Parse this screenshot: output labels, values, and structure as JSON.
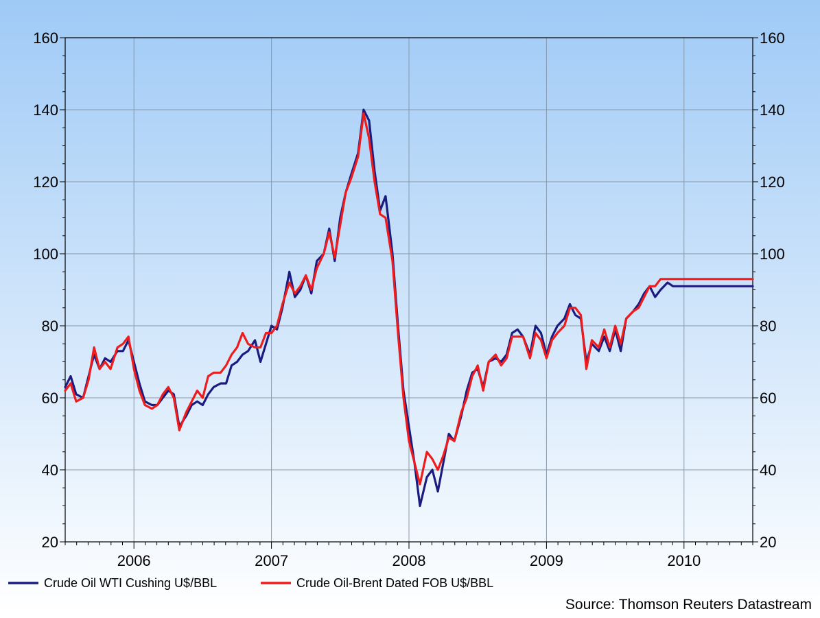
{
  "chart_data": {
    "type": "line",
    "title": "",
    "xlabel": "",
    "ylabel": "",
    "ylim": [
      20,
      160
    ],
    "y_ticks": [
      "20",
      "40",
      "60",
      "80",
      "100",
      "120",
      "140",
      "160"
    ],
    "x_range": [
      2005.5,
      2010.5
    ],
    "x_tick_labels": [
      "2006",
      "2007",
      "2008",
      "2009",
      "2010"
    ],
    "grid": true,
    "legend_position": "bottom-left",
    "source": "Source: Thomson Reuters Datastream",
    "background_gradient": [
      "#9fcaf6",
      "#ffffff"
    ],
    "series": [
      {
        "name": "Crude Oil WTI Cushing U$/BBL",
        "color": "#1c1c80",
        "x": [
          2005.5,
          2005.54,
          2005.58,
          2005.63,
          2005.67,
          2005.71,
          2005.75,
          2005.79,
          2005.83,
          2005.88,
          2005.92,
          2005.96,
          2006.0,
          2006.04,
          2006.08,
          2006.13,
          2006.17,
          2006.21,
          2006.25,
          2006.29,
          2006.33,
          2006.38,
          2006.42,
          2006.46,
          2006.5,
          2006.54,
          2006.58,
          2006.63,
          2006.67,
          2006.71,
          2006.75,
          2006.79,
          2006.83,
          2006.88,
          2006.92,
          2006.96,
          2007.0,
          2007.04,
          2007.08,
          2007.13,
          2007.17,
          2007.21,
          2007.25,
          2007.29,
          2007.33,
          2007.38,
          2007.42,
          2007.46,
          2007.5,
          2007.54,
          2007.58,
          2007.63,
          2007.67,
          2007.71,
          2007.75,
          2007.79,
          2007.83,
          2007.88,
          2007.92,
          2007.96,
          2008.0,
          2008.04,
          2008.08,
          2008.13,
          2008.17,
          2008.21,
          2008.25,
          2008.29,
          2008.33,
          2008.38,
          2008.42,
          2008.46,
          2008.5,
          2008.54,
          2008.58,
          2008.63,
          2008.67,
          2008.71,
          2008.75,
          2008.79,
          2008.83,
          2008.88,
          2008.92,
          2008.96,
          2009.0,
          2009.04,
          2009.08,
          2009.13,
          2009.17,
          2009.21,
          2009.25,
          2009.29,
          2009.33,
          2009.38,
          2009.42,
          2009.46,
          2009.5,
          2009.54,
          2009.58,
          2009.63,
          2009.67,
          2009.71,
          2009.75,
          2009.79,
          2009.83,
          2009.88,
          2009.92,
          2009.96,
          2010.0,
          2010.04,
          2010.08,
          2010.13,
          2010.17,
          2010.21,
          2010.25,
          2010.29,
          2010.33,
          2010.38,
          2010.42,
          2010.46,
          2010.5
        ],
        "values": [
          63,
          66,
          61,
          60,
          66,
          72,
          68,
          71,
          70,
          73,
          73,
          76,
          70,
          64,
          59,
          58,
          58,
          60,
          62,
          61,
          52,
          55,
          58,
          59,
          58,
          61,
          63,
          64,
          64,
          69,
          70,
          72,
          73,
          76,
          70,
          75,
          80,
          79,
          85,
          95,
          88,
          90,
          94,
          89,
          98,
          100,
          107,
          98,
          110,
          117,
          122,
          128,
          140,
          137,
          123,
          112,
          116,
          100,
          80,
          62,
          52,
          42,
          30,
          38,
          40,
          34,
          42,
          50,
          48,
          55,
          62,
          67,
          68,
          63,
          70,
          71,
          70,
          72,
          78,
          79,
          77,
          72,
          80,
          78,
          72,
          77,
          80,
          82,
          86,
          83,
          82,
          70,
          75,
          73,
          77,
          73,
          79,
          73,
          82,
          84,
          86,
          89,
          91,
          88,
          90,
          92,
          91,
          91,
          91,
          91,
          91,
          91,
          91,
          91,
          91,
          91,
          91,
          91,
          91,
          91,
          91
        ],
        "path_hint": "dense-weekly"
      },
      {
        "name": "Crude Oil-Brent Dated FOB U$/BBL",
        "color": "#ee1c1c",
        "x": [
          2005.5,
          2005.54,
          2005.58,
          2005.63,
          2005.67,
          2005.71,
          2005.75,
          2005.79,
          2005.83,
          2005.88,
          2005.92,
          2005.96,
          2006.0,
          2006.04,
          2006.08,
          2006.13,
          2006.17,
          2006.21,
          2006.25,
          2006.29,
          2006.33,
          2006.38,
          2006.42,
          2006.46,
          2006.5,
          2006.54,
          2006.58,
          2006.63,
          2006.67,
          2006.71,
          2006.75,
          2006.79,
          2006.83,
          2006.88,
          2006.92,
          2006.96,
          2007.0,
          2007.04,
          2007.08,
          2007.13,
          2007.17,
          2007.21,
          2007.25,
          2007.29,
          2007.33,
          2007.38,
          2007.42,
          2007.46,
          2007.5,
          2007.54,
          2007.58,
          2007.63,
          2007.67,
          2007.71,
          2007.75,
          2007.79,
          2007.83,
          2007.88,
          2007.92,
          2007.96,
          2008.0,
          2008.04,
          2008.08,
          2008.13,
          2008.17,
          2008.21,
          2008.25,
          2008.29,
          2008.33,
          2008.38,
          2008.42,
          2008.46,
          2008.5,
          2008.54,
          2008.58,
          2008.63,
          2008.67,
          2008.71,
          2008.75,
          2008.79,
          2008.83,
          2008.88,
          2008.92,
          2008.96,
          2009.0,
          2009.04,
          2009.08,
          2009.13,
          2009.17,
          2009.21,
          2009.25,
          2009.29,
          2009.33,
          2009.38,
          2009.42,
          2009.46,
          2009.5,
          2009.54,
          2009.58,
          2009.63,
          2009.67,
          2009.71,
          2009.75,
          2009.79,
          2009.83,
          2009.88,
          2009.92,
          2009.96,
          2010.0,
          2010.04,
          2010.08,
          2010.13,
          2010.17,
          2010.21,
          2010.25,
          2010.29,
          2010.33,
          2010.38,
          2010.42,
          2010.46,
          2010.5
        ],
        "values": [
          62,
          64,
          59,
          60,
          65,
          74,
          68,
          70,
          68,
          74,
          75,
          77,
          68,
          62,
          58,
          57,
          58,
          61,
          63,
          60,
          51,
          56,
          59,
          62,
          60,
          66,
          67,
          67,
          69,
          72,
          74,
          78,
          75,
          74,
          74,
          78,
          78,
          80,
          86,
          92,
          89,
          91,
          94,
          90,
          96,
          100,
          106,
          99,
          108,
          117,
          121,
          127,
          139,
          132,
          120,
          111,
          110,
          98,
          78,
          60,
          48,
          42,
          36,
          45,
          43,
          40,
          44,
          49,
          48,
          56,
          60,
          66,
          69,
          62,
          70,
          72,
          69,
          71,
          77,
          77,
          77,
          71,
          78,
          76,
          71,
          76,
          78,
          80,
          85,
          85,
          83,
          68,
          76,
          74,
          79,
          74,
          80,
          75,
          82,
          84,
          85,
          88,
          91,
          91,
          93,
          93,
          93,
          93,
          93,
          93,
          93,
          93,
          93,
          93,
          93,
          93,
          93,
          93,
          93,
          93,
          93
        ]
      }
    ]
  }
}
